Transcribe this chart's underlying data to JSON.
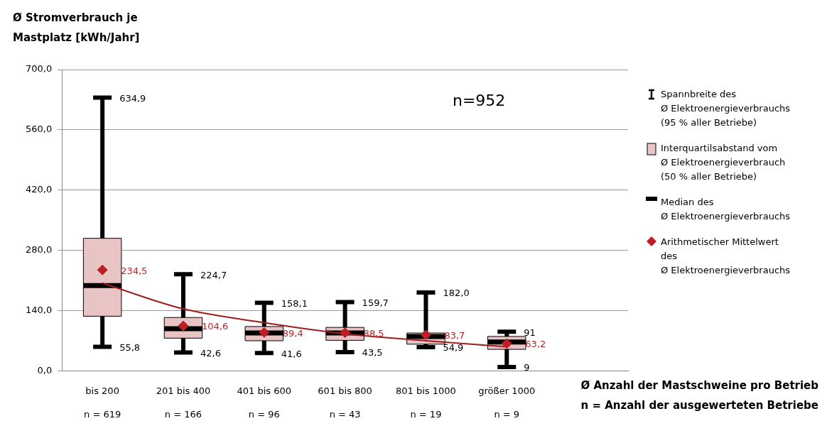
{
  "chart_data": {
    "type": "box",
    "ylabel": "Ø Stromverbrauch je Mastplatz [kWh/Jahr]",
    "xlabel": "Ø Anzahl der Mastschweine pro Betrieb\nn = Anzahl der ausgewerteten Betriebe",
    "categories": [
      "bis 200\nn = 619",
      "201 bis 400\nn = 166",
      "401 bis 600\nn = 96",
      "601 bis 800\nn = 43",
      "801 bis 1000\nn = 19",
      "größer 1000\nn = 9"
    ],
    "ylim": [
      0,
      700
    ],
    "yticks": [
      {
        "value": 0,
        "label": "0,0"
      },
      {
        "value": 140,
        "label": "140,0"
      },
      {
        "value": 280,
        "label": "280,0"
      },
      {
        "value": 420,
        "label": "420,0"
      },
      {
        "value": 560,
        "label": "560,0"
      },
      {
        "value": 700,
        "label": "700,0"
      }
    ],
    "grid": "y",
    "legend": "right",
    "series": [
      {
        "type": "box",
        "name": "Interquartilsabstand vom\nØ Elektroenergieverbrauch\n(50 % aller Betriebe)",
        "color": "#e8c4c4",
        "boxes": [
          {
            "low": 55.8,
            "q1": 127,
            "median": 198,
            "q3": 308,
            "high": 634.9
          },
          {
            "low": 42.6,
            "q1": 76,
            "median": 98,
            "q3": 124,
            "high": 224.7
          },
          {
            "low": 41.6,
            "q1": 70,
            "median": 88,
            "q3": 103,
            "high": 158.1
          },
          {
            "low": 43.5,
            "q1": 71,
            "median": 88,
            "q3": 101,
            "high": 159.7
          },
          {
            "low": 54.9,
            "q1": 62,
            "median": 80,
            "q3": 88,
            "high": 182.0
          },
          {
            "low": 9,
            "q1": 50,
            "median": 67,
            "q3": 80,
            "high": 91
          }
        ]
      },
      {
        "type": "scatter",
        "name": "Arithmetischer Mittelwert\ndes\nØ Elektroenergieverbrauchs",
        "color": "#be1e24",
        "marker": "diamond",
        "values": [
          234.5,
          104.6,
          89.4,
          88.5,
          83.7,
          63.2
        ],
        "value_labels": [
          "234,5",
          "104,6",
          "89,4",
          "88,5",
          "83,7",
          "63,2"
        ]
      },
      {
        "type": "line",
        "color": "#a01c1c",
        "values": [
          204,
          144,
          112,
          86,
          70,
          56
        ]
      }
    ],
    "annotations": [
      "Spannbreite des\nØ Elektroenergieverbrauchs\n(95 % aller Betriebe)",
      "Median des\nØ Elektroenergieverbrauchs",
      "n=952",
      {
        "text": "634,9",
        "x": "bis 200\nn = 619",
        "y": 634.9
      },
      {
        "text": "55,8",
        "x": "bis 200\nn = 619",
        "y": 55.8
      },
      {
        "text": "224,7",
        "x": "201 bis 400\nn = 166",
        "y": 224.7
      },
      {
        "text": "42,6",
        "x": "201 bis 400\nn = 166",
        "y": 42.6
      },
      {
        "text": "158,1",
        "x": "401 bis 600\nn = 96",
        "y": 158.1
      },
      {
        "text": "41,6",
        "x": "401 bis 600\nn = 96",
        "y": 41.6
      },
      {
        "text": "159,7",
        "x": "601 bis 800\nn = 43",
        "y": 159.7
      },
      {
        "text": "43,5",
        "x": "601 bis 800\nn = 43",
        "y": 43.5
      },
      {
        "text": "182,0",
        "x": "801 bis 1000\nn = 19",
        "y": 182.0
      },
      {
        "text": "54,9",
        "x": "801 bis 1000\nn = 19",
        "y": 54.9
      },
      {
        "text": "91",
        "x": "größer 1000\nn = 9",
        "y": 91
      },
      {
        "text": "9",
        "x": "größer 1000\nn = 9",
        "y": 9
      }
    ]
  }
}
